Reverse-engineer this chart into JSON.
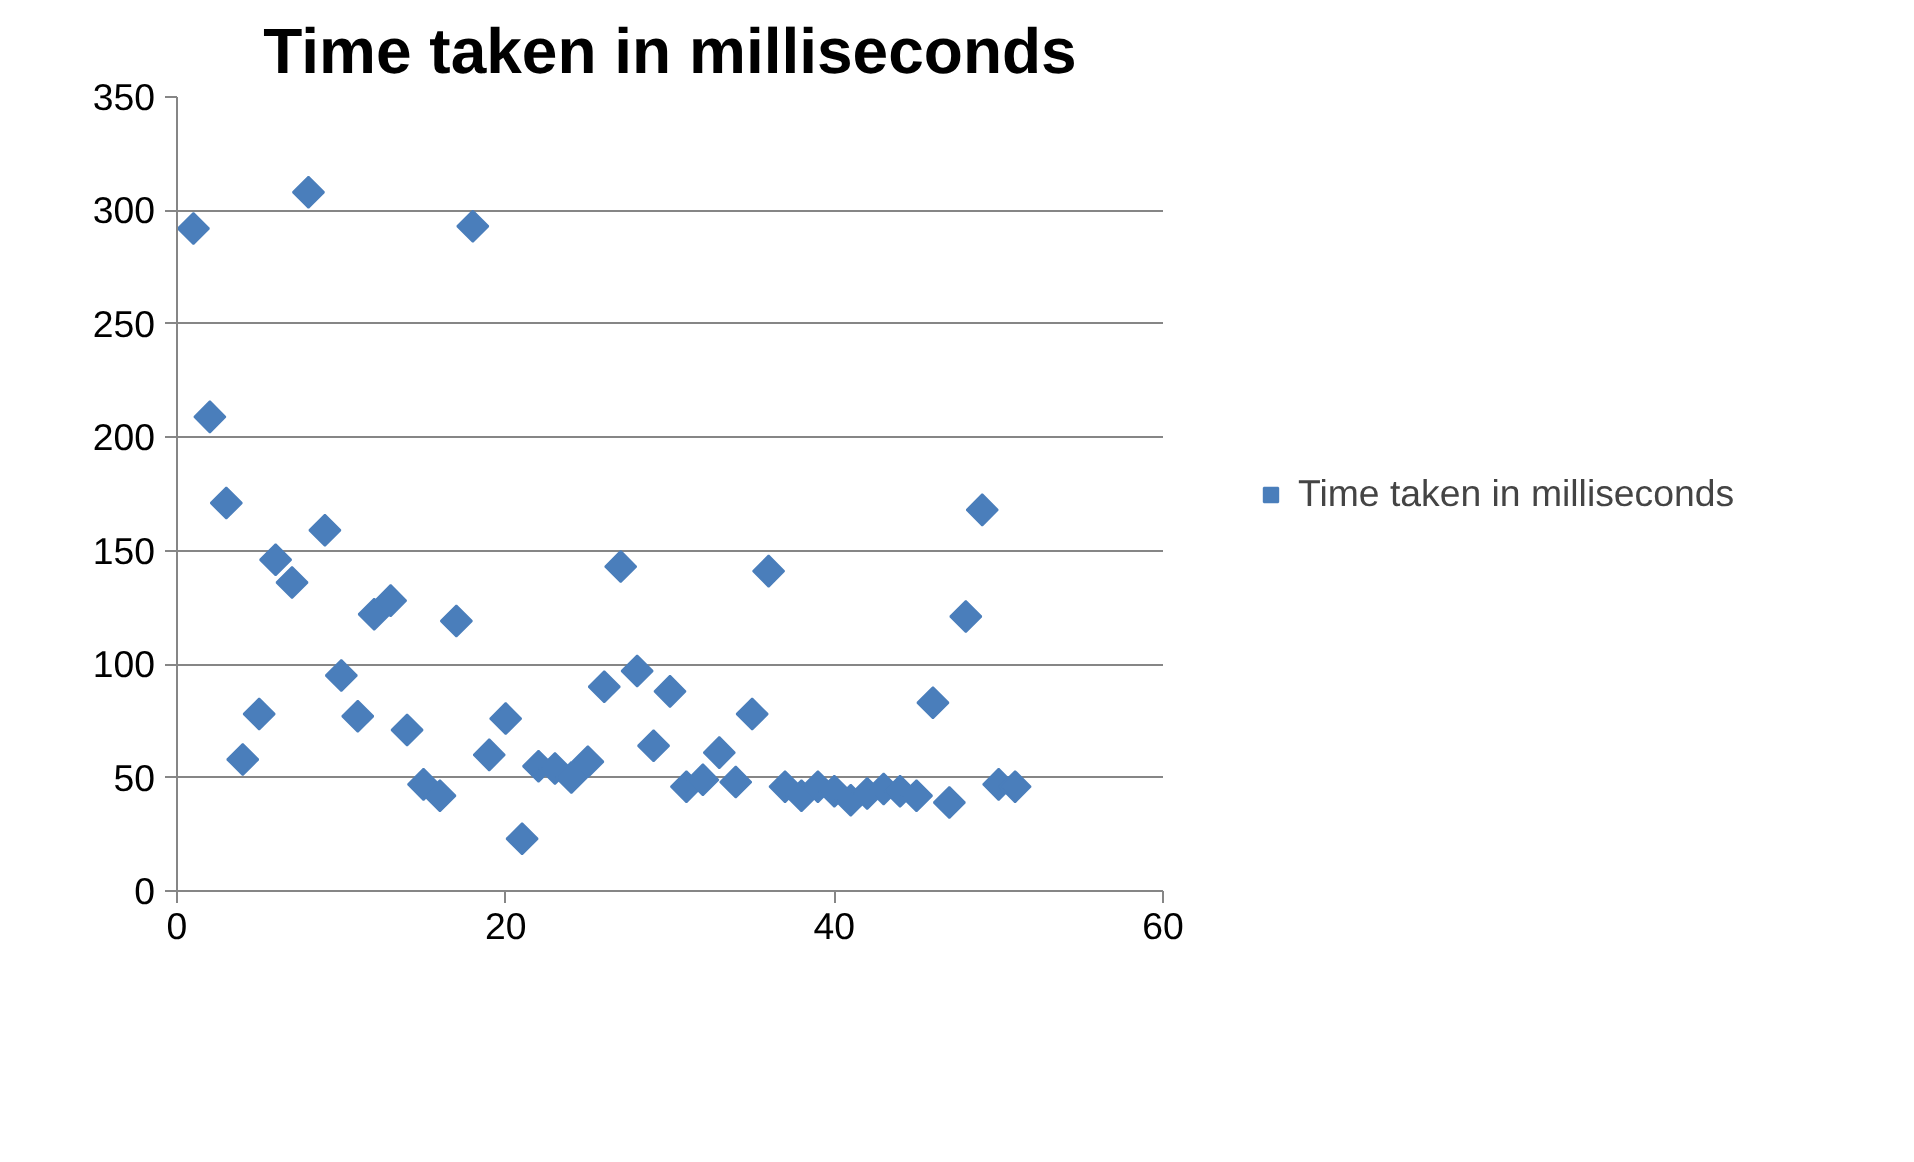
{
  "chart_data": {
    "type": "scatter",
    "title": "Time taken in milliseconds",
    "x": [
      1,
      2,
      3,
      4,
      5,
      6,
      7,
      8,
      9,
      10,
      11,
      12,
      13,
      14,
      15,
      16,
      17,
      18,
      19,
      20,
      21,
      22,
      23,
      24,
      25,
      26,
      27,
      28,
      29,
      30,
      31,
      32,
      33,
      34,
      35,
      36,
      37,
      38,
      39,
      40,
      41,
      42,
      43,
      44,
      45,
      46,
      47,
      48,
      49,
      50,
      51
    ],
    "series": [
      {
        "name": "Time taken in milliseconds",
        "color": "#4a7ebb",
        "values": [
          292,
          209,
          171,
          58,
          78,
          146,
          136,
          308,
          159,
          95,
          77,
          122,
          128,
          71,
          47,
          42,
          119,
          293,
          60,
          76,
          23,
          55,
          54,
          50,
          57,
          90,
          143,
          97,
          64,
          88,
          46,
          49,
          61,
          48,
          78,
          141,
          46,
          42,
          46,
          44,
          40,
          43,
          45,
          44,
          42,
          83,
          39,
          121,
          168,
          47,
          46
        ]
      }
    ],
    "xlim": [
      0,
      60
    ],
    "xticks": [
      0,
      20,
      40,
      60
    ],
    "ylim": [
      0,
      350
    ],
    "yticks": [
      0,
      50,
      100,
      150,
      200,
      250,
      300,
      350
    ],
    "grid": "y",
    "legend": "right",
    "marker": "diamond"
  }
}
